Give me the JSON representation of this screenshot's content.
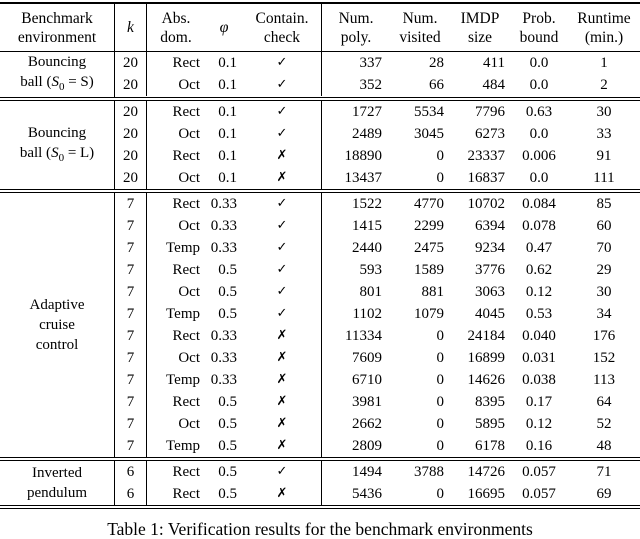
{
  "colors": {
    "text": "#000000",
    "background": "#ffffff"
  },
  "caption": "Table 1: Verification results for the benchmark environments",
  "table": {
    "headers": {
      "env": {
        "line1": "Benchmark",
        "line2": "environment"
      },
      "k": {
        "label": "k"
      },
      "absdom": {
        "line1": "Abs.",
        "line2": "dom."
      },
      "phi": {
        "label": "φ"
      },
      "contain": {
        "line1": "Contain.",
        "line2": "check"
      },
      "poly": {
        "line1": "Num.",
        "line2": "poly."
      },
      "visited": {
        "line1": "Num.",
        "line2": "visited"
      },
      "imdp": {
        "line1": "IMDP",
        "line2": "size"
      },
      "prob": {
        "line1": "Prob.",
        "line2": "bound"
      },
      "runtime": {
        "line1": "Runtime",
        "line2": "(min.)"
      }
    },
    "groups": [
      {
        "env": {
          "lines": [
            {
              "t": "Bouncing"
            },
            {
              "pre": "ball (",
              "var": "S",
              "sub": "0",
              "post": " = S)"
            }
          ]
        },
        "rows": [
          [
            "20",
            "Rect",
            "0.1",
            "✓",
            "337",
            "28",
            "411",
            "0.0",
            "1"
          ],
          [
            "20",
            "Oct",
            "0.1",
            "✓",
            "352",
            "66",
            "484",
            "0.0",
            "2"
          ]
        ]
      },
      {
        "env": {
          "lines": [
            {
              "t": "Bouncing"
            },
            {
              "pre": "ball (",
              "var": "S",
              "sub": "0",
              "post": " = L)"
            }
          ]
        },
        "rows": [
          [
            "20",
            "Rect",
            "0.1",
            "✓",
            "1727",
            "5534",
            "7796",
            "0.63",
            "30"
          ],
          [
            "20",
            "Oct",
            "0.1",
            "✓",
            "2489",
            "3045",
            "6273",
            "0.0",
            "33"
          ],
          [
            "20",
            "Rect",
            "0.1",
            "✗",
            "18890",
            "0",
            "23337",
            "0.006",
            "91"
          ],
          [
            "20",
            "Oct",
            "0.1",
            "✗",
            "13437",
            "0",
            "16837",
            "0.0",
            "111"
          ]
        ]
      },
      {
        "env": {
          "lines": [
            {
              "t": "Adaptive"
            },
            {
              "t": "cruise"
            },
            {
              "t": "control"
            }
          ]
        },
        "rows": [
          [
            "7",
            "Rect",
            "0.33",
            "✓",
            "1522",
            "4770",
            "10702",
            "0.084",
            "85"
          ],
          [
            "7",
            "Oct",
            "0.33",
            "✓",
            "1415",
            "2299",
            "6394",
            "0.078",
            "60"
          ],
          [
            "7",
            "Temp",
            "0.33",
            "✓",
            "2440",
            "2475",
            "9234",
            "0.47",
            "70"
          ],
          [
            "7",
            "Rect",
            "0.5",
            "✓",
            "593",
            "1589",
            "3776",
            "0.62",
            "29"
          ],
          [
            "7",
            "Oct",
            "0.5",
            "✓",
            "801",
            "881",
            "3063",
            "0.12",
            "30"
          ],
          [
            "7",
            "Temp",
            "0.5",
            "✓",
            "1102",
            "1079",
            "4045",
            "0.53",
            "34"
          ],
          [
            "7",
            "Rect",
            "0.33",
            "✗",
            "11334",
            "0",
            "24184",
            "0.040",
            "176"
          ],
          [
            "7",
            "Oct",
            "0.33",
            "✗",
            "7609",
            "0",
            "16899",
            "0.031",
            "152"
          ],
          [
            "7",
            "Temp",
            "0.33",
            "✗",
            "6710",
            "0",
            "14626",
            "0.038",
            "113"
          ],
          [
            "7",
            "Rect",
            "0.5",
            "✗",
            "3981",
            "0",
            "8395",
            "0.17",
            "64"
          ],
          [
            "7",
            "Oct",
            "0.5",
            "✗",
            "2662",
            "0",
            "5895",
            "0.12",
            "52"
          ],
          [
            "7",
            "Temp",
            "0.5",
            "✗",
            "2809",
            "0",
            "6178",
            "0.16",
            "48"
          ]
        ]
      },
      {
        "env": {
          "lines": [
            {
              "t": "Inverted"
            },
            {
              "t": "pendulum"
            }
          ]
        },
        "rows": [
          [
            "6",
            "Rect",
            "0.5",
            "✓",
            "1494",
            "3788",
            "14726",
            "0.057",
            "71"
          ],
          [
            "6",
            "Rect",
            "0.5",
            "✗",
            "5436",
            "0",
            "16695",
            "0.057",
            "69"
          ]
        ]
      }
    ]
  }
}
